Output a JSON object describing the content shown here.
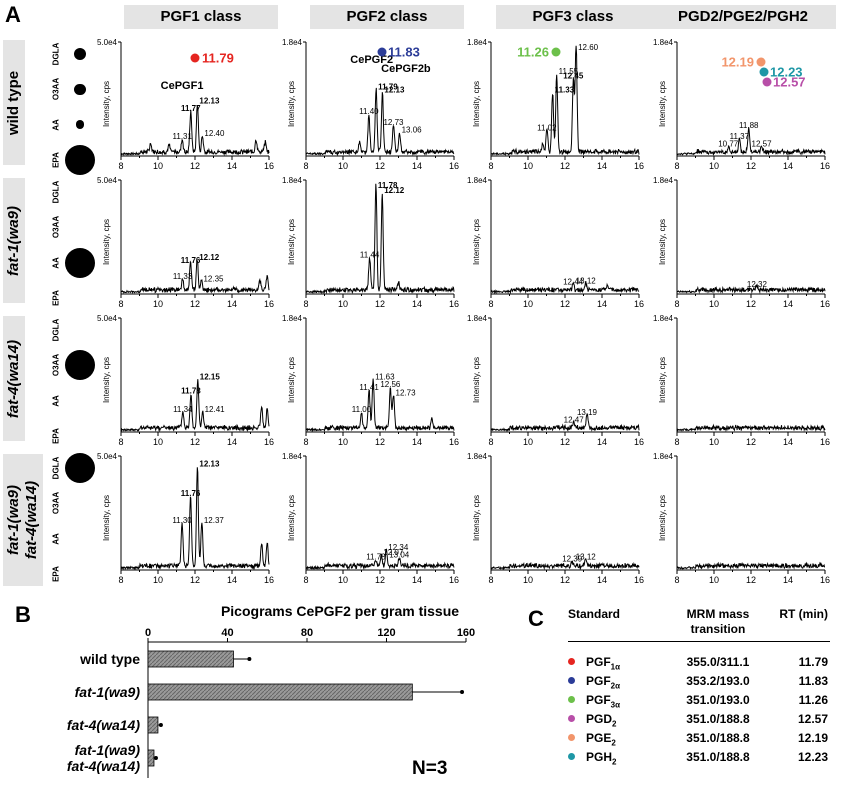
{
  "panel_a": {
    "label": "A",
    "column_headers": [
      "PGF1 class",
      "PGF2 class",
      "PGF3 class",
      "PGD2/PGE2/PGH2"
    ],
    "row_labels": [
      [
        "wild type"
      ],
      [
        "fat-1(wa9)"
      ],
      [
        "fat-4(wa14)"
      ],
      [
        "fat-1(wa9)",
        "fat-4(wa14)"
      ]
    ],
    "fatty_acids": [
      "DGLA",
      "O3AA",
      "AA",
      "EPA"
    ],
    "fatty_acid_relative_abundance": [
      [
        0.12,
        0.1,
        0.04,
        1.0
      ],
      [
        0.0,
        0.0,
        1.0,
        0.0
      ],
      [
        0.0,
        1.0,
        0.0,
        0.0
      ],
      [
        1.0,
        0.0,
        0.0,
        0.0
      ]
    ]
  },
  "panel_b": {
    "label": "B",
    "title": "Picograms CePGF2 per gram tissue",
    "n_label": "N=3"
  },
  "panel_c": {
    "label": "C",
    "headers": {
      "standard": "Standard",
      "mrm": "MRM mass transition",
      "rt": "RT (min)"
    },
    "rows": [
      {
        "base": "PGF",
        "sub": "1α",
        "mrm": "355.0/311.1",
        "rt": "11.79",
        "color": "#e52520"
      },
      {
        "base": "PGF",
        "sub": "2α",
        "mrm": "353.2/193.0",
        "rt": "11.83",
        "color": "#2b3c98"
      },
      {
        "base": "PGF",
        "sub": "3α",
        "mrm": "351.0/193.0",
        "rt": "11.26",
        "color": "#6cc04a"
      },
      {
        "base": "PGD",
        "sub": "2",
        "mrm": "351.0/188.8",
        "rt": "12.57",
        "color": "#b84fa8"
      },
      {
        "base": "PGE",
        "sub": "2",
        "mrm": "351.0/188.8",
        "rt": "12.19",
        "color": "#f2956b"
      },
      {
        "base": "PGH",
        "sub": "2",
        "mrm": "351.0/188.8",
        "rt": "12.23",
        "color": "#1e97a6"
      }
    ]
  },
  "chart_data": [
    {
      "type": "line",
      "panel": "A",
      "xlim": [
        8,
        16
      ],
      "xticks": [
        8,
        10,
        12,
        14,
        16
      ],
      "ylabel": "Intensity, cps",
      "columns": [
        {
          "ymax_label": "5.0e4",
          "ymax": 50000,
          "standards": [
            {
              "label": "11.79",
              "color": "#e52520"
            }
          ]
        },
        {
          "ymax_label": "1.8e4",
          "ymax": 18000,
          "standards": [
            {
              "label": "11.83",
              "color": "#2b3c98"
            }
          ]
        },
        {
          "ymax_label": "1.8e4",
          "ymax": 18000,
          "standards": [
            {
              "label": "11.26",
              "color": "#6cc04a"
            }
          ]
        },
        {
          "ymax_label": "1.8e4",
          "ymax": 18000,
          "standards": [
            {
              "label": "12.19",
              "color": "#f2956b"
            },
            {
              "label": "12.23",
              "color": "#1e97a6"
            },
            {
              "label": "12.57",
              "color": "#b84fa8"
            }
          ]
        }
      ],
      "traces": [
        [
          {
            "peaks": [
              [
                11.31,
                0.12
              ],
              [
                11.77,
                0.38
              ],
              [
                12.13,
                0.45
              ],
              [
                12.4,
                0.15
              ],
              [
                9.6,
                0.08
              ],
              [
                10.6,
                0.06
              ],
              [
                15.3,
                0.12
              ],
              [
                15.8,
                0.09
              ]
            ],
            "labels": [
              {
                "x": 11.31,
                "text": "11.31",
                "bold": false
              },
              {
                "x": 11.77,
                "text": "11.77",
                "bold": true
              },
              {
                "x": 12.13,
                "text": "12.13",
                "bold": true
              },
              {
                "x": 12.4,
                "text": "12.40",
                "bold": false
              }
            ],
            "names": [
              {
                "text": "CePGF1",
                "x": 11.3,
                "y": 0.62
              }
            ]
          },
          {
            "peaks": [
              [
                11.4,
                0.35
              ],
              [
                11.79,
                0.58
              ],
              [
                12.13,
                0.55
              ],
              [
                12.73,
                0.25
              ],
              [
                13.06,
                0.18
              ],
              [
                10.9,
                0.1
              ]
            ],
            "labels": [
              {
                "x": 11.4,
                "text": "11.40",
                "bold": false
              },
              {
                "x": 11.79,
                "text": "11.79",
                "bold": true
              },
              {
                "x": 12.13,
                "text": "12.13",
                "bold": true
              },
              {
                "x": 12.73,
                "text": "12.73",
                "bold": false
              },
              {
                "x": 13.06,
                "text": "13.06",
                "bold": false
              }
            ],
            "names": [
              {
                "text": "CePGF2",
                "x": 11.55,
                "y": 0.86
              },
              {
                "text": "CePGF2b",
                "x": 13.4,
                "y": 0.78
              }
            ]
          },
          {
            "peaks": [
              [
                11.02,
                0.2
              ],
              [
                11.33,
                0.55
              ],
              [
                11.55,
                0.72
              ],
              [
                12.45,
                0.68
              ],
              [
                12.6,
                1.0
              ],
              [
                10.8,
                0.08
              ]
            ],
            "labels": [
              {
                "x": 11.02,
                "text": "11.02",
                "bold": false
              },
              {
                "x": 11.33,
                "text": "11.33",
                "bold": true
              },
              {
                "x": 11.55,
                "text": "11.55",
                "bold": false
              },
              {
                "x": 12.45,
                "text": "12.45",
                "bold": true
              },
              {
                "x": 12.6,
                "text": "12.60",
                "bold": false
              }
            ],
            "names": []
          },
          {
            "peaks": [
              [
                10.77,
                0.05
              ],
              [
                11.37,
                0.12
              ],
              [
                11.88,
                0.22
              ],
              [
                12.57,
                0.05
              ]
            ],
            "labels": [
              {
                "x": 10.77,
                "text": "10.77",
                "bold": false
              },
              {
                "x": 11.37,
                "text": "11.37",
                "bold": false
              },
              {
                "x": 11.88,
                "text": "11.88",
                "bold": false
              },
              {
                "x": 12.57,
                "text": "12.57",
                "bold": false
              }
            ],
            "names": []
          }
        ],
        [
          {
            "peaks": [
              [
                11.33,
                0.1
              ],
              [
                11.76,
                0.25
              ],
              [
                12.12,
                0.28
              ],
              [
                12.35,
                0.08
              ],
              [
                15.5,
                0.1
              ],
              [
                15.9,
                0.12
              ]
            ],
            "labels": [
              {
                "x": 11.33,
                "text": "11.33",
                "bold": false
              },
              {
                "x": 11.76,
                "text": "11.76",
                "bold": true
              },
              {
                "x": 12.12,
                "text": "12.12",
                "bold": true
              },
              {
                "x": 12.35,
                "text": "12.35",
                "bold": false
              }
            ],
            "names": []
          },
          {
            "peaks": [
              [
                11.44,
                0.3
              ],
              [
                11.78,
                1.0
              ],
              [
                12.12,
                0.9
              ],
              [
                13,
                0.06
              ]
            ],
            "labels": [
              {
                "x": 11.44,
                "text": "11.44",
                "bold": false
              },
              {
                "x": 11.78,
                "text": "11.78",
                "bold": true
              },
              {
                "x": 12.12,
                "text": "12.12",
                "bold": true
              }
            ],
            "names": []
          },
          {
            "peaks": [
              [
                12.44,
                0.05
              ],
              [
                13.12,
                0.06
              ],
              [
                14.3,
                0.05
              ]
            ],
            "labels": [
              {
                "x": 12.44,
                "text": "12.44",
                "bold": false
              },
              {
                "x": 13.12,
                "text": "13.12",
                "bold": false
              }
            ],
            "names": []
          },
          {
            "peaks": [
              [
                12.32,
                0.03
              ]
            ],
            "labels": [
              {
                "x": 12.32,
                "text": "12.32",
                "bold": false
              }
            ],
            "names": []
          }
        ],
        [
          {
            "peaks": [
              [
                11.34,
                0.15
              ],
              [
                11.78,
                0.32
              ],
              [
                12.15,
                0.45
              ],
              [
                12.41,
                0.15
              ],
              [
                15.6,
                0.2
              ],
              [
                15.9,
                0.18
              ]
            ],
            "labels": [
              {
                "x": 11.34,
                "text": "11.34",
                "bold": false
              },
              {
                "x": 11.78,
                "text": "11.78",
                "bold": true
              },
              {
                "x": 12.15,
                "text": "12.15",
                "bold": true
              },
              {
                "x": 12.41,
                "text": "12.41",
                "bold": false
              }
            ],
            "names": []
          },
          {
            "peaks": [
              [
                11.0,
                0.15
              ],
              [
                11.41,
                0.35
              ],
              [
                11.63,
                0.45
              ],
              [
                12.56,
                0.38
              ],
              [
                12.73,
                0.3
              ],
              [
                14.8,
                0.08
              ]
            ],
            "labels": [
              {
                "x": 11.0,
                "text": "11.00",
                "bold": false
              },
              {
                "x": 11.41,
                "text": "11.41",
                "bold": false
              },
              {
                "x": 11.63,
                "text": "11.63",
                "bold": false
              },
              {
                "x": 12.56,
                "text": "12.56",
                "bold": false
              },
              {
                "x": 12.73,
                "text": "12.73",
                "bold": false
              }
            ],
            "names": []
          },
          {
            "peaks": [
              [
                12.47,
                0.05
              ],
              [
                13.19,
                0.12
              ]
            ],
            "labels": [
              {
                "x": 12.47,
                "text": "12.47",
                "bold": false
              },
              {
                "x": 13.19,
                "text": "13.19",
                "bold": false
              }
            ],
            "names": []
          },
          {
            "peaks": [],
            "labels": [],
            "names": []
          }
        ],
        [
          {
            "peaks": [
              [
                11.3,
                0.4
              ],
              [
                11.76,
                0.65
              ],
              [
                12.13,
                0.92
              ],
              [
                12.37,
                0.4
              ],
              [
                15.6,
                0.2
              ],
              [
                15.9,
                0.22
              ]
            ],
            "labels": [
              {
                "x": 11.3,
                "text": "11.30",
                "bold": false
              },
              {
                "x": 11.76,
                "text": "11.76",
                "bold": true
              },
              {
                "x": 12.13,
                "text": "12.13",
                "bold": true
              },
              {
                "x": 12.37,
                "text": "12.37",
                "bold": false
              }
            ],
            "names": []
          },
          {
            "peaks": [
              [
                11.78,
                0.06
              ],
              [
                12.07,
                0.1
              ],
              [
                12.34,
                0.15
              ],
              [
                13.04,
                0.08
              ]
            ],
            "labels": [
              {
                "x": 11.78,
                "text": "11.78",
                "bold": false
              },
              {
                "x": 12.07,
                "text": "12.07",
                "bold": false
              },
              {
                "x": 12.34,
                "text": "12.34",
                "bold": false
              },
              {
                "x": 13.04,
                "text": "13.04",
                "bold": false
              }
            ],
            "names": []
          },
          {
            "peaks": [
              [
                12.39,
                0.04
              ],
              [
                13.12,
                0.06
              ]
            ],
            "labels": [
              {
                "x": 12.39,
                "text": "12.39",
                "bold": false
              },
              {
                "x": 13.12,
                "text": "13.12",
                "bold": false
              }
            ],
            "names": []
          },
          {
            "peaks": [],
            "labels": [],
            "names": []
          }
        ]
      ]
    },
    {
      "type": "bar",
      "panel": "B",
      "orientation": "horizontal",
      "title": "Picograms CePGF2 per gram tissue",
      "categories": [
        [
          "wild type"
        ],
        [
          "fat-1(wa9)"
        ],
        [
          "fat-4(wa14)"
        ],
        [
          "fat-1(wa9)",
          "fat-4(wa14)"
        ]
      ],
      "category_italic": [
        false,
        true,
        true,
        true
      ],
      "values": [
        43,
        133,
        5,
        3
      ],
      "errors": [
        8,
        25,
        1.5,
        1
      ],
      "xlim": [
        0,
        160
      ],
      "xticks": [
        0,
        40,
        80,
        120,
        160
      ]
    }
  ]
}
